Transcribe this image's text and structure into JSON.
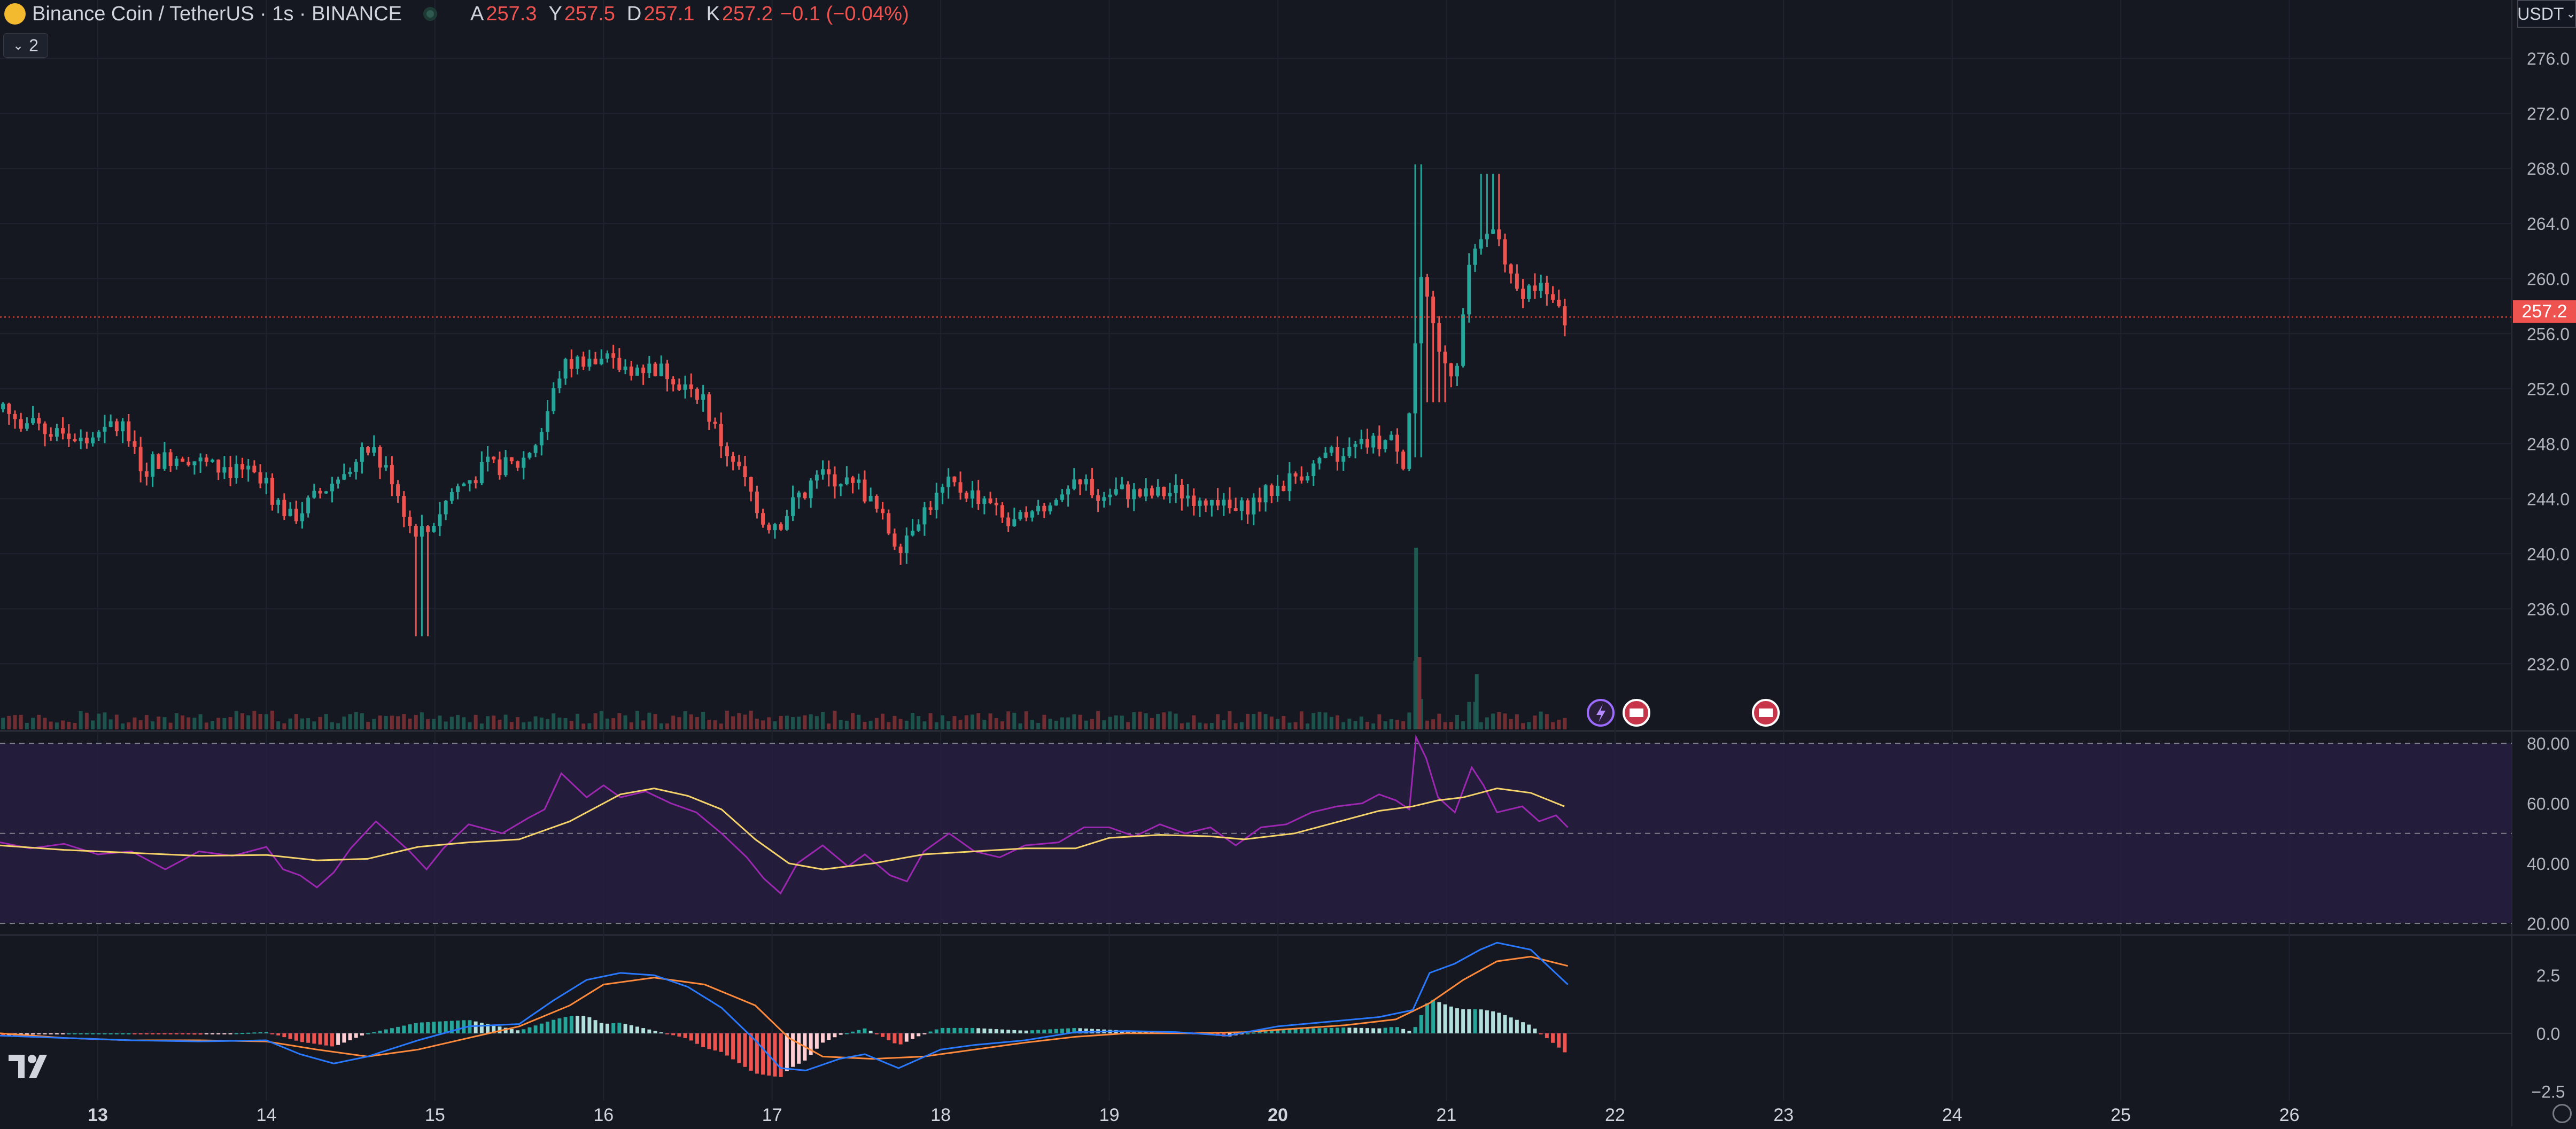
{
  "header": {
    "symbol": "Binance Coin / TetherUS · 1s · BINANCE",
    "ohlc": [
      {
        "key": "A",
        "value": "257.3"
      },
      {
        "key": "Y",
        "value": "257.5"
      },
      {
        "key": "D",
        "value": "257.1"
      },
      {
        "key": "K",
        "value": "257.2"
      }
    ],
    "change": "−0.1 (−0.04%)",
    "indicators_badge": "2",
    "currency": "USDT",
    "last_price": "257.2"
  },
  "colors": {
    "up": "#26a69a",
    "down": "#ef5350",
    "rsi": "#9c27b0",
    "rsi_ma": "#f5d36b",
    "macd": "#2979ff",
    "signal": "#ff8a3c"
  },
  "icons": [
    "lightning-event-icon",
    "us-flag-event-icon",
    "us-flag-event-icon"
  ],
  "chart_data": {
    "type": "candlestick",
    "price_axis": {
      "ticks": [
        "232.0",
        "236.0",
        "240.0",
        "244.0",
        "248.0",
        "252.0",
        "256.0",
        "260.0",
        "264.0",
        "268.0",
        "272.0",
        "276.0"
      ],
      "range": [
        228.4,
        278.3
      ]
    },
    "time_axis": {
      "labels": [
        "13",
        "14",
        "15",
        "16",
        "17",
        "18",
        "19",
        "20",
        "21",
        "22",
        "23",
        "24",
        "25",
        "26"
      ],
      "range": [
        12.42,
        27.32
      ]
    },
    "price_path": [
      [
        12.42,
        250.5
      ],
      [
        12.6,
        249.3
      ],
      [
        12.8,
        248.6
      ],
      [
        13.0,
        248.5
      ],
      [
        13.15,
        249.3
      ],
      [
        13.25,
        246.5
      ],
      [
        13.5,
        247.2
      ],
      [
        13.7,
        246.2
      ],
      [
        13.9,
        245.8
      ],
      [
        14.05,
        244.0
      ],
      [
        14.15,
        242.5
      ],
      [
        14.3,
        244.2
      ],
      [
        14.5,
        246.3
      ],
      [
        14.6,
        247.5
      ],
      [
        14.75,
        245.5
      ],
      [
        14.85,
        242.0
      ],
      [
        14.95,
        241.5
      ],
      [
        15.1,
        244.5
      ],
      [
        15.3,
        246.2
      ],
      [
        15.5,
        246.5
      ],
      [
        15.62,
        248.5
      ],
      [
        15.75,
        253.5
      ],
      [
        15.9,
        254.3
      ],
      [
        16.1,
        253.5
      ],
      [
        16.3,
        253.5
      ],
      [
        16.45,
        252.8
      ],
      [
        16.55,
        252.0
      ],
      [
        16.7,
        248.0
      ],
      [
        16.85,
        245.0
      ],
      [
        16.95,
        242.5
      ],
      [
        17.05,
        242.3
      ],
      [
        17.2,
        245.0
      ],
      [
        17.35,
        245.5
      ],
      [
        17.5,
        245.2
      ],
      [
        17.6,
        243.5
      ],
      [
        17.75,
        240.5
      ],
      [
        17.85,
        242.5
      ],
      [
        18.05,
        245.0
      ],
      [
        18.25,
        244.0
      ],
      [
        18.4,
        242.0
      ],
      [
        18.6,
        243.0
      ],
      [
        18.8,
        244.8
      ],
      [
        19.0,
        244.8
      ],
      [
        19.2,
        244.2
      ],
      [
        19.4,
        244.5
      ],
      [
        19.55,
        244.0
      ],
      [
        19.75,
        243.0
      ],
      [
        19.95,
        244.5
      ],
      [
        20.15,
        246.0
      ],
      [
        20.35,
        247.0
      ],
      [
        20.55,
        248.0
      ],
      [
        20.7,
        248.2
      ],
      [
        20.75,
        246.5
      ],
      [
        20.85,
        260.0
      ],
      [
        20.95,
        254.5
      ],
      [
        21.05,
        253.0
      ],
      [
        21.15,
        262.0
      ],
      [
        21.3,
        263.5
      ],
      [
        21.4,
        259.0
      ],
      [
        21.55,
        259.5
      ],
      [
        21.7,
        257.2
      ]
    ],
    "volume_spikes": [
      [
        20.82,
        0.95
      ],
      [
        20.85,
        0.42
      ],
      [
        21.15,
        0.38
      ],
      [
        15.6,
        0.18
      ],
      [
        14.9,
        0.2
      ]
    ],
    "rsi": {
      "levels": [
        "80.00",
        "60.00",
        "40.00",
        "20.00"
      ],
      "range": [
        17,
        82
      ],
      "ma": [
        [
          12.42,
          46
        ],
        [
          12.8,
          44.5
        ],
        [
          13.2,
          43.5
        ],
        [
          13.6,
          42.5
        ],
        [
          14.0,
          42.8
        ],
        [
          14.3,
          41
        ],
        [
          14.6,
          41.5
        ],
        [
          14.9,
          45.5
        ],
        [
          15.2,
          47
        ],
        [
          15.5,
          48
        ],
        [
          15.8,
          54
        ],
        [
          16.1,
          63
        ],
        [
          16.3,
          65
        ],
        [
          16.5,
          62.5
        ],
        [
          16.7,
          58
        ],
        [
          16.9,
          48
        ],
        [
          17.1,
          40
        ],
        [
          17.3,
          38
        ],
        [
          17.6,
          40
        ],
        [
          17.9,
          43
        ],
        [
          18.2,
          44
        ],
        [
          18.5,
          45
        ],
        [
          18.8,
          45
        ],
        [
          19.0,
          48.5
        ],
        [
          19.3,
          49.5
        ],
        [
          19.6,
          49
        ],
        [
          19.8,
          48
        ],
        [
          20.1,
          50
        ],
        [
          20.4,
          54.5
        ],
        [
          20.6,
          57.5
        ],
        [
          20.8,
          59
        ],
        [
          20.95,
          61
        ],
        [
          21.1,
          62
        ],
        [
          21.3,
          65
        ],
        [
          21.5,
          63.5
        ],
        [
          21.7,
          59
        ]
      ],
      "rsi_line": [
        [
          12.42,
          47
        ],
        [
          12.6,
          45
        ],
        [
          12.8,
          46.5
        ],
        [
          13.0,
          43
        ],
        [
          13.2,
          44
        ],
        [
          13.4,
          38
        ],
        [
          13.6,
          44
        ],
        [
          13.8,
          42.5
        ],
        [
          14.0,
          45.5
        ],
        [
          14.1,
          38
        ],
        [
          14.2,
          36
        ],
        [
          14.3,
          32
        ],
        [
          14.4,
          37
        ],
        [
          14.5,
          45
        ],
        [
          14.65,
          54
        ],
        [
          14.75,
          49
        ],
        [
          14.85,
          44
        ],
        [
          14.95,
          38
        ],
        [
          15.05,
          45
        ],
        [
          15.2,
          53
        ],
        [
          15.4,
          50
        ],
        [
          15.55,
          55
        ],
        [
          15.65,
          58
        ],
        [
          15.75,
          70
        ],
        [
          15.9,
          62
        ],
        [
          16.0,
          66
        ],
        [
          16.1,
          62
        ],
        [
          16.25,
          64
        ],
        [
          16.4,
          60
        ],
        [
          16.55,
          57
        ],
        [
          16.7,
          50
        ],
        [
          16.85,
          42
        ],
        [
          16.95,
          35
        ],
        [
          17.05,
          30
        ],
        [
          17.15,
          40
        ],
        [
          17.3,
          46
        ],
        [
          17.45,
          39
        ],
        [
          17.55,
          43
        ],
        [
          17.7,
          36
        ],
        [
          17.8,
          34
        ],
        [
          17.9,
          44
        ],
        [
          18.05,
          50
        ],
        [
          18.2,
          44
        ],
        [
          18.35,
          42
        ],
        [
          18.5,
          46
        ],
        [
          18.7,
          47
        ],
        [
          18.85,
          52
        ],
        [
          19.0,
          52
        ],
        [
          19.15,
          49
        ],
        [
          19.3,
          53
        ],
        [
          19.45,
          50
        ],
        [
          19.6,
          52
        ],
        [
          19.75,
          46
        ],
        [
          19.9,
          52
        ],
        [
          20.05,
          53
        ],
        [
          20.2,
          57
        ],
        [
          20.35,
          59
        ],
        [
          20.5,
          60
        ],
        [
          20.6,
          63
        ],
        [
          20.7,
          61
        ],
        [
          20.78,
          58
        ],
        [
          20.82,
          82
        ],
        [
          20.88,
          75
        ],
        [
          20.95,
          62
        ],
        [
          21.05,
          57
        ],
        [
          21.15,
          72
        ],
        [
          21.22,
          66
        ],
        [
          21.3,
          57
        ],
        [
          21.45,
          59
        ],
        [
          21.55,
          54
        ],
        [
          21.65,
          56
        ],
        [
          21.72,
          52
        ]
      ]
    },
    "macd": {
      "ticks": [
        "2.5",
        "0.0",
        "−2.5"
      ],
      "range": [
        -2.9,
        4.0
      ],
      "macd_line": [
        [
          12.42,
          -0.1
        ],
        [
          12.8,
          -0.2
        ],
        [
          13.2,
          -0.3
        ],
        [
          13.6,
          -0.35
        ],
        [
          14.0,
          -0.3
        ],
        [
          14.2,
          -0.9
        ],
        [
          14.4,
          -1.3
        ],
        [
          14.6,
          -1.0
        ],
        [
          14.9,
          -0.3
        ],
        [
          15.2,
          0.3
        ],
        [
          15.5,
          0.4
        ],
        [
          15.7,
          1.4
        ],
        [
          15.9,
          2.3
        ],
        [
          16.1,
          2.6
        ],
        [
          16.3,
          2.5
        ],
        [
          16.5,
          2.0
        ],
        [
          16.7,
          1.1
        ],
        [
          16.9,
          -0.3
        ],
        [
          17.05,
          -1.5
        ],
        [
          17.2,
          -1.6
        ],
        [
          17.4,
          -1.1
        ],
        [
          17.55,
          -0.9
        ],
        [
          17.75,
          -1.5
        ],
        [
          18.0,
          -0.7
        ],
        [
          18.2,
          -0.5
        ],
        [
          18.5,
          -0.3
        ],
        [
          18.8,
          0.05
        ],
        [
          19.1,
          0.1
        ],
        [
          19.4,
          0.05
        ],
        [
          19.7,
          -0.1
        ],
        [
          20.0,
          0.3
        ],
        [
          20.3,
          0.5
        ],
        [
          20.6,
          0.7
        ],
        [
          20.8,
          1.0
        ],
        [
          20.9,
          2.6
        ],
        [
          21.05,
          3.0
        ],
        [
          21.2,
          3.6
        ],
        [
          21.3,
          3.9
        ],
        [
          21.5,
          3.6
        ],
        [
          21.72,
          2.1
        ]
      ],
      "signal_line": [
        [
          12.42,
          0.0
        ],
        [
          12.8,
          -0.2
        ],
        [
          13.2,
          -0.3
        ],
        [
          13.6,
          -0.3
        ],
        [
          14.0,
          -0.35
        ],
        [
          14.3,
          -0.7
        ],
        [
          14.6,
          -1.0
        ],
        [
          14.9,
          -0.7
        ],
        [
          15.2,
          -0.2
        ],
        [
          15.5,
          0.3
        ],
        [
          15.8,
          1.2
        ],
        [
          16.0,
          2.1
        ],
        [
          16.3,
          2.4
        ],
        [
          16.6,
          2.1
        ],
        [
          16.9,
          1.2
        ],
        [
          17.1,
          -0.2
        ],
        [
          17.3,
          -1.0
        ],
        [
          17.6,
          -1.1
        ],
        [
          17.9,
          -1.0
        ],
        [
          18.2,
          -0.7
        ],
        [
          18.5,
          -0.4
        ],
        [
          18.8,
          -0.15
        ],
        [
          19.1,
          0.0
        ],
        [
          19.5,
          0.0
        ],
        [
          19.8,
          0.05
        ],
        [
          20.1,
          0.2
        ],
        [
          20.4,
          0.35
        ],
        [
          20.7,
          0.6
        ],
        [
          20.9,
          1.3
        ],
        [
          21.1,
          2.3
        ],
        [
          21.3,
          3.1
        ],
        [
          21.5,
          3.3
        ],
        [
          21.72,
          2.9
        ]
      ]
    }
  }
}
